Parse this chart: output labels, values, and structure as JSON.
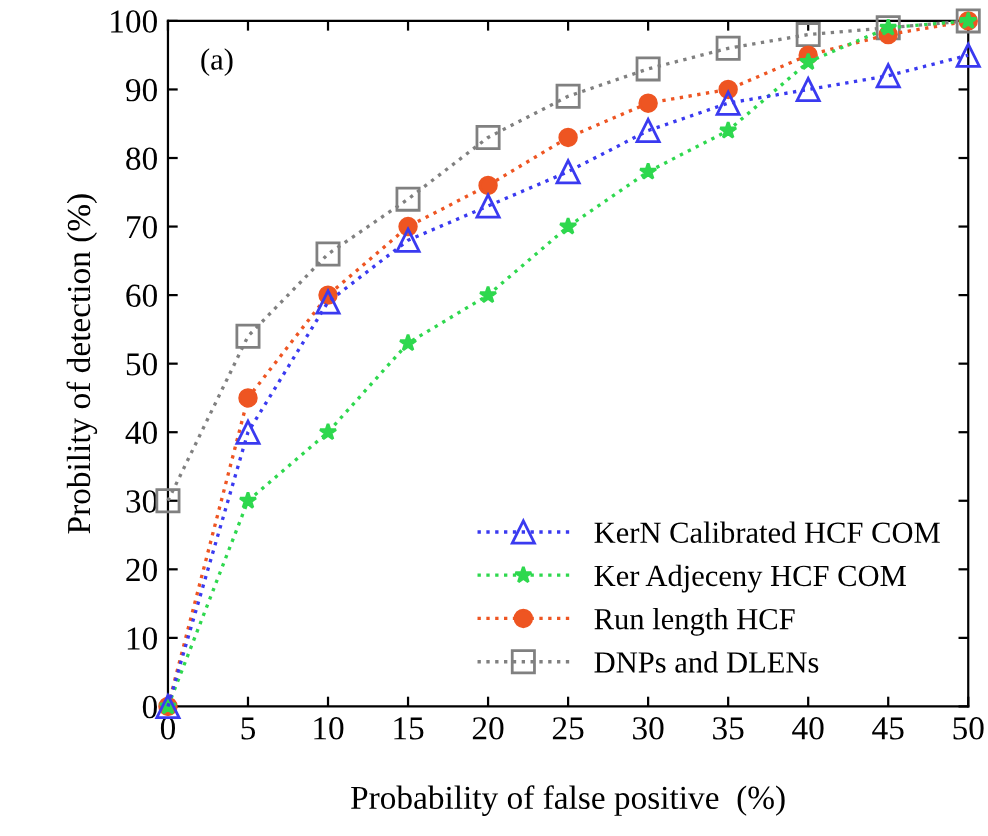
{
  "chart_data": {
    "type": "line",
    "xlabel": "Probability of false positive  (%)",
    "ylabel": "Probility of detection (%)",
    "annotations": [
      "(a)"
    ],
    "x": [
      0,
      5,
      10,
      15,
      20,
      25,
      30,
      35,
      40,
      45,
      50
    ],
    "series": [
      {
        "name": "KerN Calibrated HCF COM",
        "color": "#3a3af0",
        "marker": "triangle",
        "values": [
          0,
          40,
          59,
          68,
          73,
          78,
          84,
          88,
          90,
          92,
          95
        ]
      },
      {
        "name": "Ker Adjeceny HCF COM",
        "color": "#2ed84e",
        "marker": "star",
        "values": [
          0,
          30,
          40,
          53,
          60,
          70,
          78,
          84,
          94,
          99,
          100
        ]
      },
      {
        "name": "Run length HCF",
        "color": "#ee5522",
        "marker": "circle",
        "values": [
          0,
          45,
          60,
          70,
          76,
          83,
          88,
          90,
          95,
          98,
          100
        ]
      },
      {
        "name": "DNPs and DLENs",
        "color": "#808080",
        "marker": "square",
        "values": [
          30,
          54,
          66,
          74,
          83,
          89,
          93,
          96,
          98,
          99,
          100
        ]
      }
    ],
    "xlim": [
      0,
      50
    ],
    "ylim": [
      0,
      100
    ],
    "xticks": [
      0,
      5,
      10,
      15,
      20,
      25,
      30,
      35,
      40,
      45,
      50
    ],
    "yticks": [
      0,
      10,
      20,
      30,
      40,
      50,
      60,
      70,
      80,
      90,
      100
    ],
    "grid": false,
    "legend": "bottom right",
    "line_style": "dotted"
  }
}
